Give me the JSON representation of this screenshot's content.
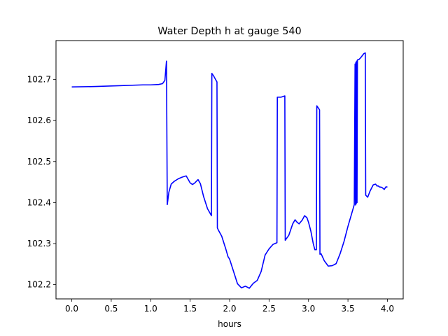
{
  "chart_data": {
    "type": "line",
    "title": "Water Depth h at gauge 540",
    "xlabel": "hours",
    "ylabel": "",
    "xlim": [
      -0.2,
      4.2
    ],
    "ylim": [
      102.165,
      102.795
    ],
    "xticks": [
      0.0,
      0.5,
      1.0,
      1.5,
      2.0,
      2.5,
      3.0,
      3.5,
      4.0
    ],
    "xtick_labels": [
      "0.0",
      "0.5",
      "1.0",
      "1.5",
      "2.0",
      "2.5",
      "3.0",
      "3.5",
      "4.0"
    ],
    "yticks": [
      102.2,
      102.3,
      102.4,
      102.5,
      102.6,
      102.7
    ],
    "ytick_labels": [
      "102.2",
      "102.3",
      "102.4",
      "102.5",
      "102.6",
      "102.7"
    ],
    "grid": false,
    "series": [
      {
        "color": "#0000ff",
        "x": [
          0.0,
          0.3,
          0.6,
          0.9,
          1.0,
          1.1,
          1.15,
          1.18,
          1.2,
          1.21,
          1.215,
          1.23,
          1.26,
          1.3,
          1.35,
          1.4,
          1.45,
          1.5,
          1.53,
          1.56,
          1.6,
          1.63,
          1.67,
          1.72,
          1.77,
          1.775,
          1.8,
          1.84,
          1.845,
          1.86,
          1.9,
          1.95,
          1.98,
          2.0,
          2.05,
          2.1,
          2.15,
          2.2,
          2.25,
          2.3,
          2.35,
          2.4,
          2.45,
          2.5,
          2.55,
          2.6,
          2.605,
          2.65,
          2.7,
          2.705,
          2.75,
          2.8,
          2.83,
          2.85,
          2.88,
          2.92,
          2.95,
          2.98,
          3.0,
          3.03,
          3.06,
          3.08,
          3.1,
          3.105,
          3.13,
          3.14,
          3.145,
          3.16,
          3.2,
          3.25,
          3.3,
          3.35,
          3.4,
          3.45,
          3.5,
          3.55,
          3.58,
          3.59,
          3.595,
          3.6,
          3.605,
          3.61,
          3.615,
          3.62,
          3.625,
          3.64,
          3.66,
          3.7,
          3.72,
          3.725,
          3.75,
          3.78,
          3.82,
          3.85,
          3.87,
          3.88,
          3.9,
          3.93,
          3.96,
          3.98,
          4.0
        ],
        "y": [
          102.682,
          102.683,
          102.685,
          102.687,
          102.687,
          102.688,
          102.69,
          102.698,
          102.745,
          102.395,
          102.402,
          102.425,
          102.445,
          102.452,
          102.458,
          102.462,
          102.465,
          102.448,
          102.444,
          102.448,
          102.456,
          102.446,
          102.415,
          102.385,
          102.368,
          102.715,
          102.708,
          102.694,
          102.338,
          102.332,
          102.318,
          102.288,
          102.268,
          102.262,
          102.232,
          102.202,
          102.192,
          102.196,
          102.191,
          102.203,
          102.21,
          102.232,
          102.272,
          102.287,
          102.298,
          102.302,
          102.657,
          102.657,
          102.66,
          102.308,
          102.32,
          102.348,
          102.358,
          102.353,
          102.348,
          102.357,
          102.368,
          102.363,
          102.352,
          102.33,
          102.3,
          102.285,
          102.285,
          102.636,
          102.629,
          102.626,
          102.274,
          102.275,
          102.258,
          102.245,
          102.246,
          102.251,
          102.275,
          102.305,
          102.342,
          102.375,
          102.395,
          102.738,
          102.394,
          102.742,
          102.397,
          102.745,
          102.4,
          102.748,
          102.748,
          102.749,
          102.753,
          102.763,
          102.765,
          102.418,
          102.413,
          102.428,
          102.443,
          102.445,
          102.44,
          102.441,
          102.438,
          102.437,
          102.432,
          102.438,
          102.438
        ]
      }
    ]
  }
}
